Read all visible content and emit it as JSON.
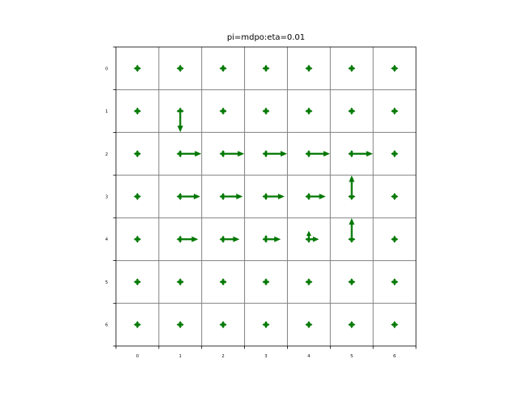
{
  "chart_data": {
    "type": "quiver",
    "title": "pi=mdpo:eta=0.01",
    "xlabel": "",
    "ylabel": "",
    "x_ticks": [
      "0",
      "1",
      "2",
      "3",
      "4",
      "5",
      "6"
    ],
    "y_ticks": [
      "0",
      "1",
      "2",
      "3",
      "4",
      "5",
      "6"
    ],
    "xlim": [
      -0.5,
      6.5
    ],
    "ylim": [
      6.5,
      -0.5
    ],
    "grid": true,
    "grid_color": "#808080",
    "arrow_color": "#007700",
    "series": [
      {
        "rows": [
          [
            {
              "r": 0,
              "u": 0,
              "l": 0,
              "d": 0
            },
            {
              "r": 0,
              "u": 0,
              "l": 0,
              "d": 0
            },
            {
              "r": 0,
              "u": 0,
              "l": 0,
              "d": 0
            },
            {
              "r": 0,
              "u": 0,
              "l": 0,
              "d": 0
            },
            {
              "r": 0,
              "u": 0,
              "l": 0,
              "d": 0
            },
            {
              "r": 0,
              "u": 0,
              "l": 0,
              "d": 0
            },
            {
              "r": 0,
              "u": 0,
              "l": 0,
              "d": 0
            }
          ],
          [
            {
              "r": 0,
              "u": 0,
              "l": 0,
              "d": 0
            },
            {
              "r": 0,
              "u": 0,
              "l": 0,
              "d": 1
            },
            {
              "r": 0,
              "u": 0,
              "l": 0,
              "d": 0
            },
            {
              "r": 0,
              "u": 0,
              "l": 0,
              "d": 0
            },
            {
              "r": 0,
              "u": 0,
              "l": 0,
              "d": 0
            },
            {
              "r": 0,
              "u": 0,
              "l": 0,
              "d": 0
            },
            {
              "r": 0,
              "u": 0,
              "l": 0,
              "d": 0
            }
          ],
          [
            {
              "r": 0,
              "u": 0,
              "l": 0,
              "d": 0
            },
            {
              "r": 1,
              "u": 0,
              "l": 0,
              "d": 0
            },
            {
              "r": 1,
              "u": 0,
              "l": 0,
              "d": 0
            },
            {
              "r": 1,
              "u": 0,
              "l": 0,
              "d": 0
            },
            {
              "r": 1,
              "u": 0,
              "l": 0,
              "d": 0
            },
            {
              "r": 1,
              "u": 0,
              "l": 0,
              "d": 0
            },
            {
              "r": 0,
              "u": 0,
              "l": 0,
              "d": 0
            }
          ],
          [
            {
              "r": 0,
              "u": 0,
              "l": 0,
              "d": 0
            },
            {
              "r": 0.95,
              "u": 0.02,
              "l": 0,
              "d": 0
            },
            {
              "r": 0.93,
              "u": 0.03,
              "l": 0,
              "d": 0
            },
            {
              "r": 0.88,
              "u": 0.06,
              "l": 0,
              "d": 0
            },
            {
              "r": 0.8,
              "u": 0.14,
              "l": 0,
              "d": 0
            },
            {
              "r": 0,
              "u": 1,
              "l": 0,
              "d": 0
            },
            {
              "r": 0,
              "u": 0,
              "l": 0,
              "d": 0
            }
          ],
          [
            {
              "r": 0,
              "u": 0,
              "l": 0,
              "d": 0
            },
            {
              "r": 0.85,
              "u": 0.1,
              "l": 0,
              "d": 0
            },
            {
              "r": 0.78,
              "u": 0.14,
              "l": 0,
              "d": 0
            },
            {
              "r": 0.7,
              "u": 0.2,
              "l": 0,
              "d": 0
            },
            {
              "r": 0.48,
              "u": 0.4,
              "l": 0,
              "d": 0
            },
            {
              "r": 0,
              "u": 1,
              "l": 0,
              "d": 0
            },
            {
              "r": 0,
              "u": 0,
              "l": 0,
              "d": 0
            }
          ],
          [
            {
              "r": 0,
              "u": 0,
              "l": 0,
              "d": 0
            },
            {
              "r": 0,
              "u": 0,
              "l": 0,
              "d": 0
            },
            {
              "r": 0,
              "u": 0,
              "l": 0,
              "d": 0
            },
            {
              "r": 0,
              "u": 0,
              "l": 0,
              "d": 0
            },
            {
              "r": 0,
              "u": 0,
              "l": 0,
              "d": 0
            },
            {
              "r": 0,
              "u": 0,
              "l": 0,
              "d": 0
            },
            {
              "r": 0,
              "u": 0,
              "l": 0,
              "d": 0
            }
          ],
          [
            {
              "r": 0,
              "u": 0,
              "l": 0,
              "d": 0
            },
            {
              "r": 0,
              "u": 0,
              "l": 0,
              "d": 0
            },
            {
              "r": 0,
              "u": 0,
              "l": 0,
              "d": 0
            },
            {
              "r": 0,
              "u": 0,
              "l": 0,
              "d": 0
            },
            {
              "r": 0,
              "u": 0,
              "l": 0,
              "d": 0
            },
            {
              "r": 0,
              "u": 0,
              "l": 0,
              "d": 0
            },
            {
              "r": 0,
              "u": 0,
              "l": 0,
              "d": 0
            }
          ]
        ]
      }
    ]
  }
}
